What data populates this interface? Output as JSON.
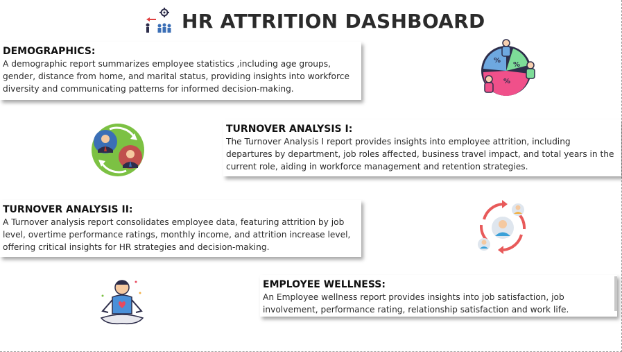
{
  "header": {
    "title": "HR ATTRITION DASHBOARD",
    "icon": "hr-team-icon"
  },
  "sections": [
    {
      "id": "demographics",
      "heading": "DEMOGRAPHICS:",
      "text": "A demographic report summarizes employee statistics ,including age groups, gender, distance from home, and marital status, providing insights into workforce diversity and communicating patterns for informed decision-making.",
      "icon": "demographics-pie-chart-icon"
    },
    {
      "id": "turnover1",
      "heading": "TURNOVER ANALYSIS I:",
      "text": "The Turnover Analysis I report provides insights into employee attrition, including departures by department, job roles affected, business travel impact, and total years in the current role, aiding in workforce management and retention strategies.",
      "icon": "employee-exchange-icon"
    },
    {
      "id": "turnover2",
      "heading": "TURNOVER ANALYSIS II:",
      "text": "A Turnover analysis report consolidates employee data, featuring attrition by job level, overtime performance ratings, monthly income, and attrition increase level, offering critical insights for HR strategies and decision-making.",
      "icon": "employee-cycle-icon"
    },
    {
      "id": "wellness",
      "heading": "EMPLOYEE WELLNESS:",
      "text": "An Employee wellness report provides insights into job satisfaction, job involvement, performance rating, relationship satisfaction and work life.",
      "icon": "meditation-wellness-icon"
    }
  ],
  "colors": {
    "title": "#2b2b2b",
    "pie_blue": "#6ea8e0",
    "pie_green": "#7ddc98",
    "pie_pink": "#f0508a",
    "pie_dark": "#2d2d4a",
    "exchange_green": "#7cc143",
    "exchange_blue": "#3b6fb6",
    "exchange_red": "#c0504d",
    "cycle_red": "#e85a5a",
    "wellness_blue": "#4a90d9"
  }
}
